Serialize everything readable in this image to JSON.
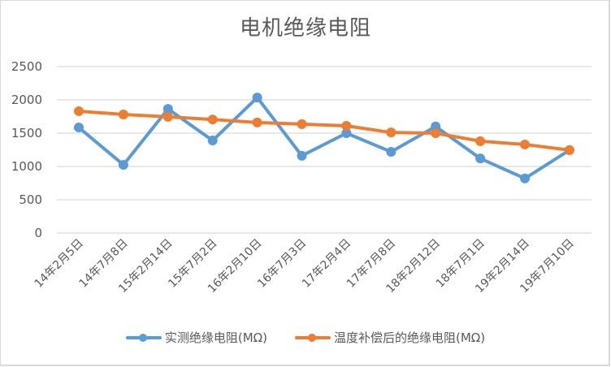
{
  "chart_data": {
    "type": "line",
    "title": "电机绝缘电阻",
    "xlabel": "",
    "ylabel": "",
    "ylim": [
      0,
      2500
    ],
    "yticks": [
      0,
      500,
      1000,
      1500,
      2000,
      2500
    ],
    "grid": true,
    "legend_position": "bottom",
    "categories": [
      "14年2月5日",
      "14年7月8日",
      "15年2月14日",
      "15年7月2日",
      "16年2月10日",
      "16年7月3日",
      "17年2月4日",
      "17年7月8日",
      "18年2月12日",
      "18年7月1日",
      "19年2月14日",
      "19年7月10日"
    ],
    "series": [
      {
        "name": "实测绝缘电阻(MΩ)",
        "color": "#5b9bd5",
        "values": [
          1585,
          1025,
          1865,
          1390,
          2035,
          1160,
          1500,
          1220,
          1600,
          1120,
          820,
          1245
        ]
      },
      {
        "name": "温度补偿后的绝缘电阻(MΩ)",
        "color": "#ed7d31",
        "values": [
          1830,
          1780,
          1745,
          1705,
          1660,
          1635,
          1610,
          1510,
          1500,
          1380,
          1330,
          1245
        ]
      }
    ]
  },
  "colors": {
    "gridline": "#d9d9d9",
    "text": "#595959",
    "border": "#d9d9d9"
  }
}
